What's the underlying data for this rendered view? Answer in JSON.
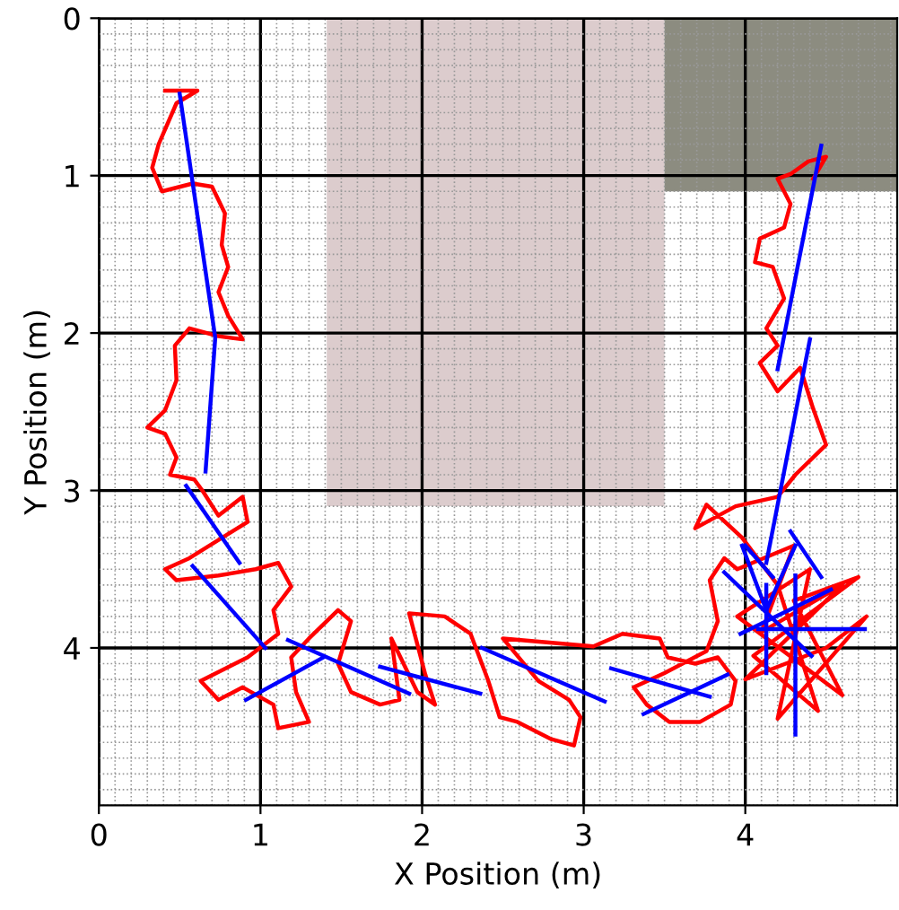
{
  "chart_data": {
    "type": "line",
    "xlabel": "X Position (m)",
    "ylabel": "Y Position (m)",
    "xlim": [
      0,
      4.94
    ],
    "ylim": [
      5,
      0
    ],
    "xticks": [
      0,
      1,
      2,
      3,
      4
    ],
    "yticks": [
      0,
      1,
      2,
      3,
      4
    ],
    "grid": true,
    "series": [
      {
        "type": "area",
        "color": "#dccccd",
        "x": [
          1.41,
          3.5
        ],
        "values": [
          3.1,
          3.1
        ]
      },
      {
        "type": "area",
        "color": "#8c8c80",
        "x": [
          3.5,
          4.94
        ],
        "values": [
          1.1,
          1.1
        ]
      },
      {
        "color": "#ff0000",
        "x": [
          0.41,
          0.61,
          0.48,
          0.37,
          0.33,
          0.39,
          0.58,
          0.7,
          0.78,
          0.76,
          0.8,
          0.74,
          0.8,
          0.89,
          0.74,
          0.56,
          0.47,
          0.48,
          0.41,
          0.3,
          0.41,
          0.48,
          0.44,
          0.59,
          0.64,
          0.74,
          0.89,
          0.92,
          0.81,
          0.56,
          0.41,
          0.48,
          0.74,
          0.97,
          1.11,
          1.19,
          1.08,
          1.11,
          0.92,
          0.63,
          0.74,
          0.89,
          1.08,
          1.11,
          1.3,
          1.22,
          1.19,
          1.3,
          1.48,
          1.56,
          1.48,
          1.56,
          1.74,
          1.86,
          1.81,
          1.97,
          2.08,
          2.02,
          1.92,
          2.14,
          2.3,
          2.41,
          2.48,
          2.59,
          2.8,
          2.94,
          2.98,
          2.91,
          2.72,
          2.5,
          3.06,
          3.24,
          3.47,
          3.52,
          3.69,
          3.83,
          3.94,
          3.91,
          3.72,
          3.53,
          3.39,
          3.31,
          3.5,
          3.76,
          3.83,
          3.78,
          3.87,
          3.95,
          4.3,
          4.1,
          4.6,
          4.0,
          4.5,
          4.75,
          4.2,
          4.4,
          3.95,
          4.6,
          4.3,
          4.7,
          4.05,
          4.45,
          4.2,
          3.98,
          3.76,
          3.69,
          3.94,
          4.2,
          4.31,
          4.5,
          4.42,
          4.34,
          4.2,
          4.09,
          4.2,
          4.13,
          4.24,
          4.17,
          4.06,
          4.09,
          4.24,
          4.28,
          4.2,
          4.28,
          4.39,
          4.5,
          4.42
        ],
        "values": [
          0.46,
          0.46,
          0.54,
          0.8,
          0.95,
          1.1,
          1.05,
          1.07,
          1.24,
          1.44,
          1.58,
          1.74,
          1.89,
          2.04,
          2.02,
          1.97,
          2.08,
          2.3,
          2.49,
          2.6,
          2.64,
          2.79,
          2.9,
          2.93,
          3.0,
          3.16,
          3.04,
          3.2,
          3.27,
          3.43,
          3.5,
          3.57,
          3.54,
          3.5,
          3.46,
          3.61,
          3.76,
          3.91,
          4.06,
          4.21,
          4.33,
          4.25,
          4.36,
          4.51,
          4.47,
          4.28,
          4.06,
          3.94,
          3.76,
          3.83,
          4.1,
          4.28,
          4.36,
          4.33,
          3.94,
          4.28,
          4.36,
          4.17,
          3.78,
          3.8,
          3.91,
          4.21,
          4.44,
          4.47,
          4.58,
          4.62,
          4.44,
          4.33,
          4.21,
          3.94,
          3.99,
          3.91,
          3.94,
          4.06,
          4.1,
          4.06,
          4.21,
          4.36,
          4.47,
          4.47,
          4.36,
          4.25,
          4.16,
          4.02,
          3.83,
          3.57,
          3.43,
          3.5,
          3.35,
          3.9,
          3.6,
          4.2,
          4.0,
          3.8,
          4.45,
          3.5,
          3.8,
          4.3,
          3.7,
          3.55,
          4.05,
          4.4,
          3.6,
          3.3,
          3.09,
          3.24,
          3.1,
          3.04,
          2.9,
          2.71,
          2.48,
          2.22,
          2.37,
          2.19,
          2.08,
          1.97,
          1.78,
          1.58,
          1.55,
          1.4,
          1.33,
          1.18,
          1.02,
          0.99,
          0.91,
          0.88,
          1.02
        ]
      },
      {
        "color": "#0000ff",
        "x": [
          0.5,
          0.72,
          0.66
        ],
        "values": [
          0.48,
          2.03,
          2.88
        ]
      },
      {
        "color": "#0000ff",
        "x": [
          0.54,
          0.87
        ],
        "values": [
          2.97,
          3.46
        ]
      },
      {
        "color": "#0000ff",
        "x": [
          0.58,
          1.03
        ],
        "values": [
          3.48,
          4.0
        ]
      },
      {
        "color": "#0000ff",
        "x": [
          1.17,
          1.92
        ],
        "values": [
          3.95,
          4.29
        ]
      },
      {
        "color": "#0000ff",
        "x": [
          0.91,
          1.39
        ],
        "values": [
          4.33,
          4.06
        ]
      },
      {
        "color": "#0000ff",
        "x": [
          1.74,
          2.36
        ],
        "values": [
          4.12,
          4.29
        ]
      },
      {
        "color": "#0000ff",
        "x": [
          2.37,
          3.13
        ],
        "values": [
          4.0,
          4.34
        ]
      },
      {
        "color": "#0000ff",
        "x": [
          3.17,
          3.78
        ],
        "values": [
          4.13,
          4.31
        ]
      },
      {
        "color": "#0000ff",
        "x": [
          3.37,
          3.89
        ],
        "values": [
          4.42,
          4.17
        ]
      },
      {
        "color": "#0000ff",
        "x": [
          4.31,
          4.31
        ],
        "values": [
          3.54,
          4.55
        ]
      },
      {
        "color": "#0000ff",
        "x": [
          3.97,
          4.53
        ],
        "values": [
          3.91,
          3.63
        ]
      },
      {
        "color": "#0000ff",
        "x": [
          4.08,
          4.74
        ],
        "values": [
          3.88,
          3.88
        ]
      },
      {
        "color": "#0000ff",
        "x": [
          4.13,
          4.13
        ],
        "values": [
          3.6,
          4.16
        ]
      },
      {
        "color": "#0000ff",
        "x": [
          3.87,
          4.41
        ],
        "values": [
          3.52,
          4.05
        ]
      },
      {
        "color": "#0000ff",
        "x": [
          3.98,
          4.13
        ],
        "values": [
          3.35,
          3.76
        ]
      },
      {
        "color": "#0000ff",
        "x": [
          4.31,
          4.13
        ],
        "values": [
          3.35,
          3.76
        ]
      },
      {
        "color": "#0000ff",
        "x": [
          4.47,
          4.2
        ],
        "values": [
          0.81,
          2.23
        ]
      },
      {
        "color": "#0000ff",
        "x": [
          4.4,
          4.13
        ],
        "values": [
          2.04,
          3.46
        ]
      },
      {
        "color": "#0000ff",
        "x": [
          4.0,
          4.17
        ],
        "values": [
          3.35,
          3.55
        ]
      },
      {
        "color": "#0000ff",
        "x": [
          4.28,
          4.47
        ],
        "values": [
          3.26,
          3.55
        ]
      }
    ]
  }
}
